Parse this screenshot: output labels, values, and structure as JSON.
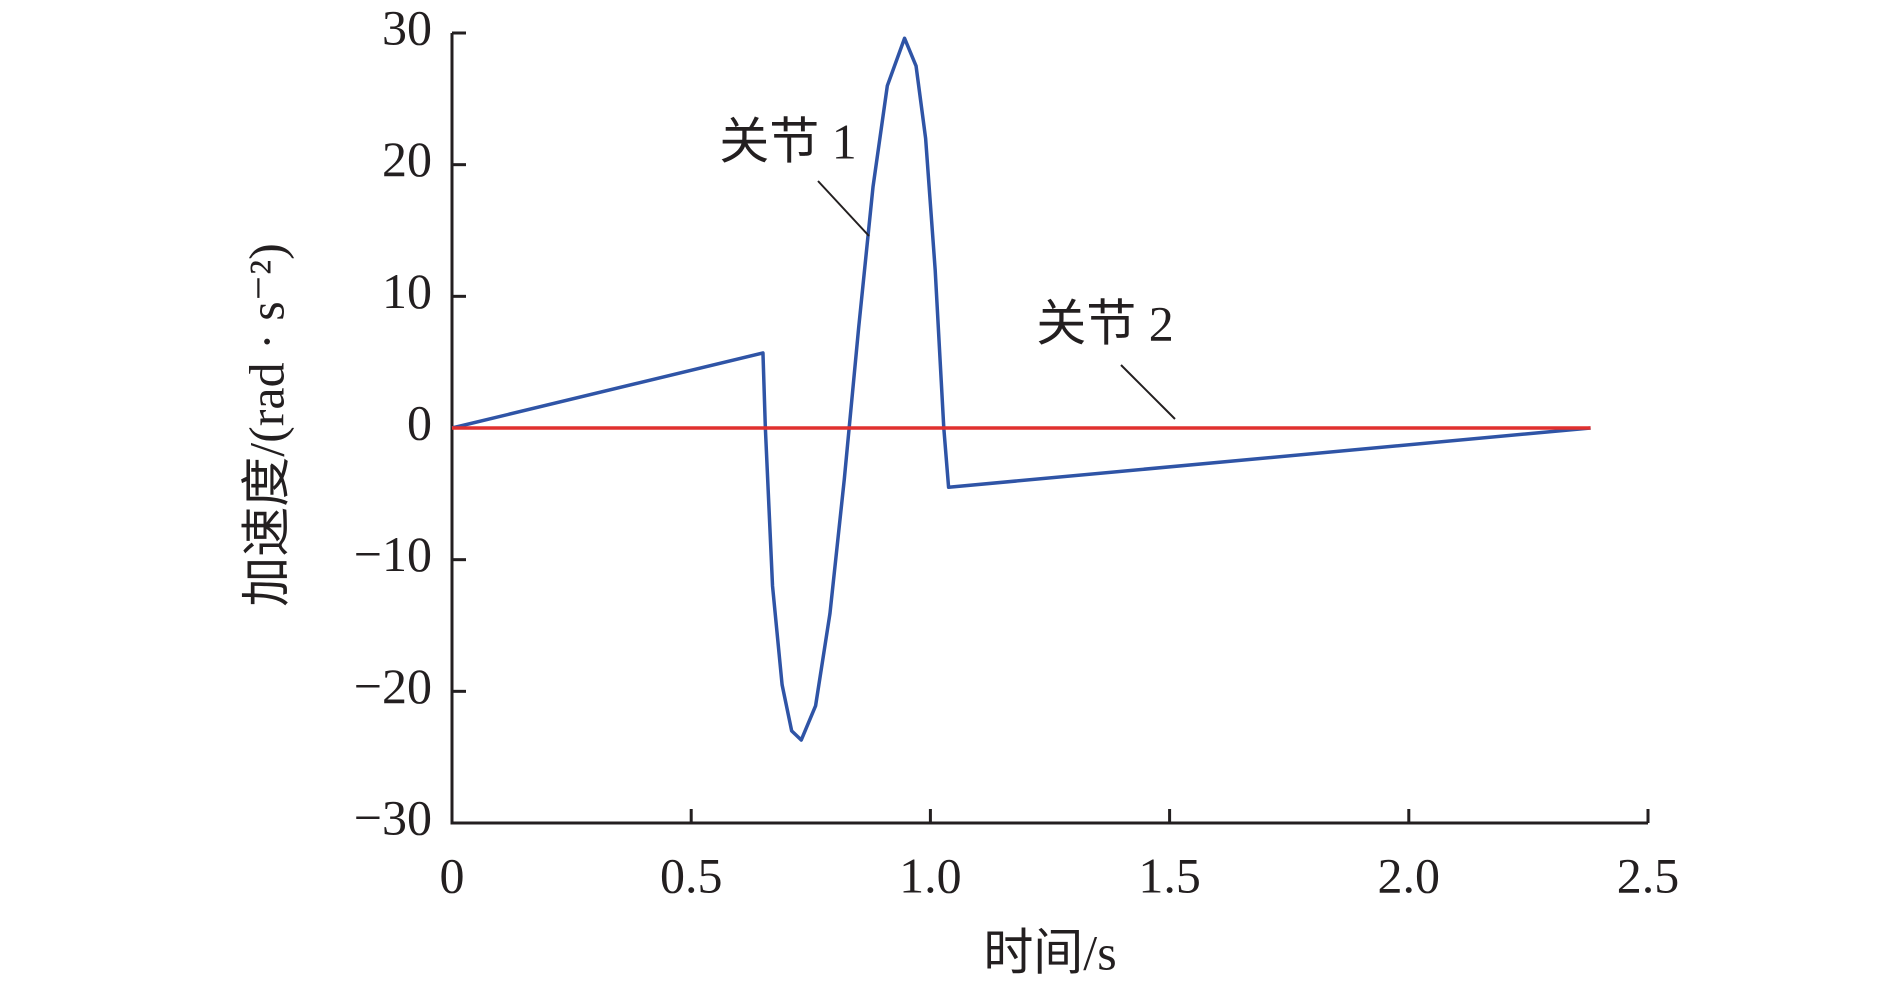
{
  "chart_data": {
    "type": "line",
    "x_label": "时间/s",
    "y_label": "加速度/(rad · s⁻²)",
    "xlim": [
      0,
      2.5
    ],
    "xticks": [
      0,
      0.5,
      {
        "value": 1,
        "label": "1.0"
      },
      1.5,
      {
        "value": 2,
        "label": "2.0"
      },
      2.5
    ],
    "ylim": [
      -30,
      30
    ],
    "yticks": [
      {
        "value": -30,
        "label": "−30"
      },
      {
        "value": -20,
        "label": "−20"
      },
      {
        "value": -10,
        "label": "−10"
      },
      0,
      10,
      20,
      30
    ],
    "series": [
      {
        "name": "关节 1",
        "color": "#2f54a6",
        "x": [
          0,
          0.65,
          0.655,
          0.67,
          0.69,
          0.71,
          0.73,
          0.76,
          0.79,
          0.82,
          0.85,
          0.88,
          0.91,
          0.946,
          0.97,
          0.99,
          1.01,
          1.028,
          1.038,
          2.38
        ],
        "values": [
          0,
          5.7,
          0,
          -12,
          -19.5,
          -23,
          -23.7,
          -21.1,
          -14.1,
          -3.9,
          7.6,
          18.3,
          26,
          29.6,
          27.5,
          22,
          12,
          0,
          -4.5,
          0
        ]
      },
      {
        "name": "关节 2",
        "color": "#e0302f",
        "x": [
          0,
          2.38
        ],
        "values": [
          0,
          0
        ]
      }
    ]
  }
}
